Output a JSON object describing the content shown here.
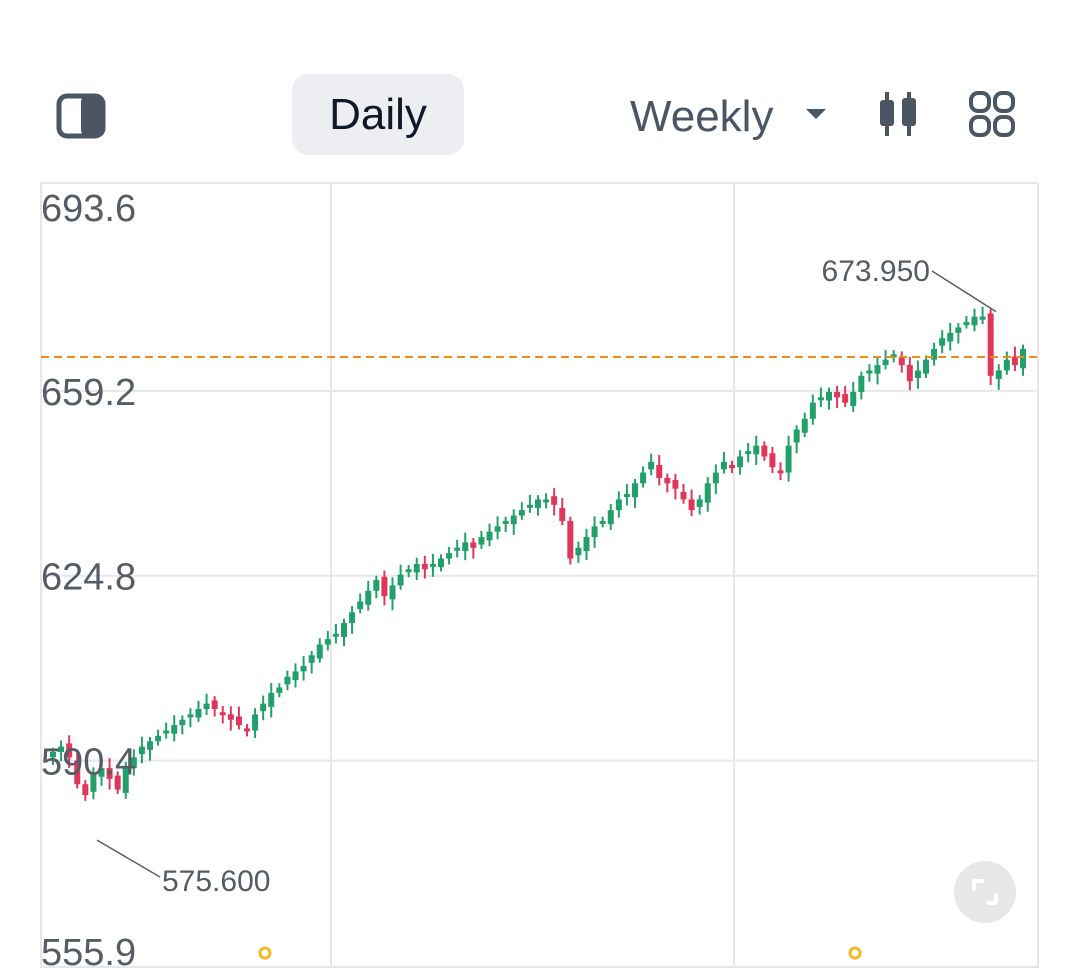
{
  "toolbar": {
    "tabs": [
      {
        "label": "Daily",
        "active": true
      },
      {
        "label": "Weekly",
        "active": false
      }
    ],
    "icons": [
      "split-panel-icon",
      "chevron-down-icon",
      "candlestick-icon",
      "grid-layout-icon"
    ]
  },
  "chart_data": {
    "type": "candlestick",
    "y_tick_labels": [
      "693.6",
      "659.2",
      "624.8",
      "590.4",
      "555.9"
    ],
    "y_ticks": [
      693.6,
      659.2,
      624.8,
      590.4,
      555.9
    ],
    "ylim": [
      555.9,
      693.6
    ],
    "reference_line": 665.5,
    "annotations": [
      {
        "label": "673.950",
        "value": 673.95,
        "kind": "high"
      },
      {
        "label": "575.600",
        "value": 575.6,
        "kind": "low"
      }
    ],
    "series_close": [
      592,
      593,
      591,
      586,
      584,
      588,
      589,
      587,
      585,
      589,
      591,
      593,
      594,
      595,
      596,
      597,
      598,
      599,
      600,
      601,
      600,
      599,
      598,
      597,
      596,
      599,
      601,
      603,
      604,
      606,
      607,
      608,
      610,
      612,
      613,
      614,
      616,
      618,
      620,
      622,
      624,
      621,
      623,
      625,
      626,
      627,
      626,
      627,
      628,
      629,
      630,
      631,
      630,
      632,
      633,
      634,
      635,
      636,
      637,
      638,
      639,
      639,
      638,
      635,
      628,
      630,
      632,
      634,
      635,
      637,
      639,
      640,
      642,
      644,
      646,
      643,
      642,
      641,
      639,
      637,
      639,
      642,
      644,
      646,
      645,
      647,
      648,
      649,
      647,
      645,
      644,
      649,
      652,
      654,
      657,
      658,
      659,
      658,
      657,
      659,
      662,
      663,
      664,
      665,
      666,
      664,
      661,
      663,
      665,
      667,
      669,
      670,
      671,
      672,
      673,
      673,
      662,
      663,
      665,
      664,
      667
    ],
    "grid": {
      "vertical_lines": 2,
      "horizontal_lines": 5
    },
    "colors": {
      "up": "#22a06b",
      "down": "#e0365a",
      "reference_line": "#f08a18",
      "grid": "#e5e7eb",
      "marker": "#f5b820"
    }
  },
  "fullscreen_button": {
    "icon": "fullscreen-icon"
  }
}
